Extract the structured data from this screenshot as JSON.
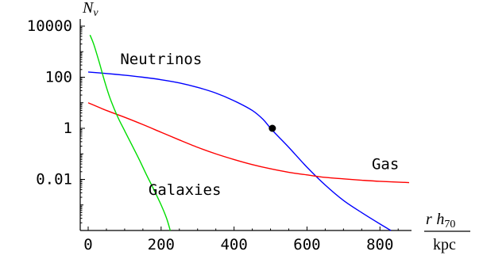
{
  "chart_data": {
    "type": "line",
    "ylabel_main": "N",
    "ylabel_sub": "ν",
    "xlabel_num_r": "r",
    "xlabel_num_h": "h",
    "xlabel_num_sub": "70",
    "xlabel_den": "kpc",
    "y_scale": "log",
    "ylim": [
      0.0001,
      10000
    ],
    "xlim": [
      -20,
      880
    ],
    "x_ticks": [
      0,
      200,
      400,
      600,
      800
    ],
    "x_tick_labels": [
      "0",
      "200",
      "400",
      "600",
      "800"
    ],
    "y_ticks": [
      10000,
      100,
      1,
      0.01
    ],
    "y_tick_labels": [
      "10000",
      "100",
      "1",
      "0.01"
    ],
    "grid": false,
    "series": [
      {
        "name": "Neutrinos",
        "color": "#0000ff",
        "x": [
          0,
          50,
          100,
          150,
          200,
          250,
          300,
          350,
          400,
          450,
          480,
          500,
          520,
          550,
          600,
          650,
          700,
          750,
          800,
          830
        ],
        "y": [
          160,
          140,
          120,
          100,
          80,
          60,
          40,
          24,
          12,
          5,
          2.2,
          1.0,
          0.5,
          0.18,
          0.03,
          0.006,
          0.0015,
          0.0005,
          0.00018,
          0.0001
        ]
      },
      {
        "name": "Gas",
        "color": "#ff0000",
        "x": [
          0,
          50,
          100,
          150,
          200,
          250,
          300,
          350,
          400,
          450,
          500,
          550,
          600,
          650,
          700,
          750,
          800,
          880
        ],
        "y": [
          10,
          5,
          2.7,
          1.4,
          0.7,
          0.35,
          0.18,
          0.1,
          0.06,
          0.038,
          0.026,
          0.019,
          0.015,
          0.012,
          0.0105,
          0.0093,
          0.0084,
          0.0075
        ]
      },
      {
        "name": "Galaxies",
        "color": "#00dd00",
        "x": [
          5,
          15,
          30,
          45,
          60,
          80,
          100,
          120,
          140,
          160,
          180,
          200,
          215,
          225
        ],
        "y": [
          4500,
          2000,
          400,
          70,
          15,
          3,
          0.8,
          0.22,
          0.06,
          0.015,
          0.004,
          0.001,
          0.0003,
          0.0001
        ]
      }
    ],
    "marker": {
      "x": 505,
      "y": 1.0
    },
    "series_labels": [
      {
        "text": "Neutrinos",
        "at_x": 200,
        "at_y": 320
      },
      {
        "text": "Gas",
        "at_x": 815,
        "at_y": 0.025
      },
      {
        "text": "Galaxies",
        "at_x": 265,
        "at_y": 0.0025
      }
    ]
  }
}
